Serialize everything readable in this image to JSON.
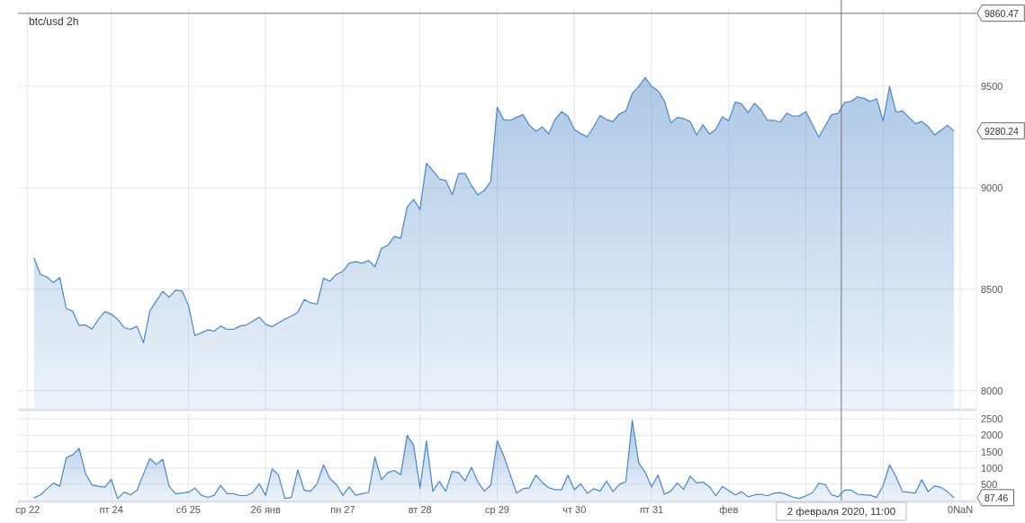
{
  "chart_data": [
    {
      "type": "area",
      "title": "btc/usd 2h",
      "tick_labels": "y",
      "grid": true,
      "x": [
        "2020-01-23T00:00",
        "2020-01-23T02:00",
        "2020-01-23T04:00",
        "2020-01-23T06:00",
        "2020-01-23T08:00",
        "2020-01-23T10:00",
        "2020-01-23T12:00",
        "2020-01-23T14:00",
        "2020-01-23T16:00",
        "2020-01-23T18:00",
        "2020-01-23T20:00",
        "2020-01-23T22:00",
        "2020-01-24T00:00",
        "2020-01-24T02:00",
        "2020-01-24T04:00",
        "2020-01-24T06:00",
        "2020-01-24T08:00",
        "2020-01-24T10:00",
        "2020-01-24T12:00",
        "2020-01-24T14:00",
        "2020-01-24T16:00",
        "2020-01-24T18:00",
        "2020-01-24T20:00",
        "2020-01-24T22:00",
        "2020-01-25T00:00",
        "2020-01-25T02:00",
        "2020-01-25T04:00",
        "2020-01-25T06:00",
        "2020-01-25T08:00",
        "2020-01-25T10:00",
        "2020-01-25T12:00",
        "2020-01-25T14:00",
        "2020-01-25T16:00",
        "2020-01-25T18:00",
        "2020-01-25T20:00",
        "2020-01-25T22:00",
        "2020-01-26T00:00",
        "2020-01-26T02:00",
        "2020-01-26T04:00",
        "2020-01-26T06:00",
        "2020-01-26T08:00",
        "2020-01-26T10:00",
        "2020-01-26T12:00",
        "2020-01-26T14:00",
        "2020-01-26T16:00",
        "2020-01-26T18:00",
        "2020-01-26T20:00",
        "2020-01-26T22:00",
        "2020-01-27T00:00",
        "2020-01-27T02:00",
        "2020-01-27T04:00",
        "2020-01-27T06:00",
        "2020-01-27T08:00",
        "2020-01-27T10:00",
        "2020-01-27T12:00",
        "2020-01-27T14:00",
        "2020-01-27T16:00",
        "2020-01-27T18:00",
        "2020-01-27T20:00",
        "2020-01-27T22:00",
        "2020-01-28T00:00",
        "2020-01-28T02:00",
        "2020-01-28T04:00",
        "2020-01-28T06:00",
        "2020-01-28T08:00",
        "2020-01-28T10:00",
        "2020-01-28T12:00",
        "2020-01-28T14:00",
        "2020-01-28T16:00",
        "2020-01-28T18:00",
        "2020-01-28T20:00",
        "2020-01-28T22:00",
        "2020-01-29T00:00",
        "2020-01-29T02:00",
        "2020-01-29T04:00",
        "2020-01-29T06:00",
        "2020-01-29T08:00",
        "2020-01-29T10:00",
        "2020-01-29T12:00",
        "2020-01-29T14:00",
        "2020-01-29T16:00",
        "2020-01-29T18:00",
        "2020-01-29T20:00",
        "2020-01-29T22:00",
        "2020-01-30T00:00",
        "2020-01-30T02:00",
        "2020-01-30T04:00",
        "2020-01-30T06:00",
        "2020-01-30T08:00",
        "2020-01-30T10:00",
        "2020-01-30T12:00",
        "2020-01-30T14:00",
        "2020-01-30T16:00",
        "2020-01-30T18:00",
        "2020-01-30T20:00",
        "2020-01-30T22:00",
        "2020-01-31T00:00",
        "2020-01-31T02:00",
        "2020-01-31T04:00",
        "2020-01-31T06:00",
        "2020-01-31T08:00",
        "2020-01-31T10:00",
        "2020-01-31T12:00",
        "2020-01-31T14:00",
        "2020-01-31T16:00",
        "2020-01-31T18:00",
        "2020-01-31T20:00",
        "2020-01-31T22:00",
        "2020-02-01T00:00",
        "2020-02-01T02:00",
        "2020-02-01T04:00",
        "2020-02-01T06:00",
        "2020-02-01T08:00",
        "2020-02-01T10:00",
        "2020-02-01T12:00",
        "2020-02-01T14:00",
        "2020-02-01T16:00",
        "2020-02-01T18:00",
        "2020-02-01T20:00",
        "2020-02-01T22:00",
        "2020-02-02T00:00",
        "2020-02-02T02:00",
        "2020-02-02T04:00",
        "2020-02-02T06:00",
        "2020-02-02T08:00",
        "2020-02-02T10:00",
        "2020-02-02T12:00",
        "2020-02-02T14:00",
        "2020-02-02T16:00",
        "2020-02-02T18:00",
        "2020-02-02T20:00",
        "2020-02-02T22:00",
        "2020-02-03T00:00",
        "2020-02-03T02:00",
        "2020-02-03T04:00",
        "2020-02-03T06:00",
        "2020-02-03T08:00",
        "2020-02-03T10:00",
        "2020-02-03T12:00",
        "2020-02-03T14:00",
        "2020-02-03T16:00",
        "2020-02-03T18:00",
        "2020-02-03T20:00",
        "2020-02-03T22:00"
      ],
      "series": [
        {
          "color": "#4a86c8",
          "values": [
            8653,
            8572,
            8560,
            8532,
            8557,
            8404,
            8392,
            8321,
            8324,
            8303,
            8352,
            8389,
            8377,
            8351,
            8311,
            8302,
            8317,
            8236,
            8392,
            8442,
            8489,
            8461,
            8495,
            8491,
            8421,
            8271,
            8285,
            8300,
            8293,
            8318,
            8302,
            8302,
            8318,
            8324,
            8342,
            8362,
            8327,
            8315,
            8334,
            8352,
            8367,
            8386,
            8449,
            8433,
            8426,
            8554,
            8539,
            8573,
            8588,
            8628,
            8636,
            8628,
            8641,
            8611,
            8701,
            8716,
            8760,
            8751,
            8905,
            8943,
            8893,
            9121,
            9084,
            9043,
            9037,
            8965,
            9070,
            9070,
            9011,
            8965,
            8987,
            9031,
            9397,
            9336,
            9332,
            9347,
            9360,
            9308,
            9279,
            9300,
            9266,
            9336,
            9375,
            9353,
            9288,
            9267,
            9251,
            9301,
            9356,
            9336,
            9326,
            9364,
            9378,
            9465,
            9500,
            9543,
            9500,
            9478,
            9428,
            9319,
            9347,
            9341,
            9326,
            9260,
            9310,
            9264,
            9289,
            9350,
            9330,
            9422,
            9413,
            9370,
            9416,
            9385,
            9333,
            9332,
            9323,
            9367,
            9353,
            9355,
            9375,
            9311,
            9249,
            9305,
            9360,
            9367,
            9420,
            9426,
            9448,
            9441,
            9426,
            9438,
            9329,
            9500,
            9373,
            9379,
            9348,
            9316,
            9327,
            9301,
            9260,
            9283,
            9308,
            9280.24
          ]
        }
      ],
      "xlim": [
        "2020-01-22T19:00",
        "2020-02-04T05:00"
      ],
      "xticks": [
        {
          "value": "2020-01-22T22:00",
          "label": null
        },
        {
          "value": "2020-01-24",
          "label": null
        },
        {
          "value": "2020-01-25",
          "label": null
        },
        {
          "value": "2020-01-26",
          "label": null
        },
        {
          "value": "2020-01-27",
          "label": null
        },
        {
          "value": "2020-01-28",
          "label": null
        },
        {
          "value": "2020-01-29",
          "label": null
        },
        {
          "value": "2020-01-30",
          "label": null
        },
        {
          "value": "2020-01-31",
          "label": null
        },
        {
          "value": "2020-02-01",
          "label": null
        },
        {
          "value": "2020-02-02",
          "label": null
        },
        {
          "value": "2020-02-03",
          "label": null
        },
        {
          "value": "2020-02-04",
          "label": null
        }
      ],
      "ylim": [
        7910,
        9890
      ],
      "yticks": [
        8000,
        8500,
        9000,
        9500
      ],
      "ref_lines": [
        {
          "axis": "y",
          "value": 9860.47,
          "label": "9860.47",
          "color": "#a0a0a8"
        },
        {
          "axis": "x",
          "value": "2020-02-02T11:00",
          "color": "#70737c"
        }
      ],
      "annotations": [
        "9280.24"
      ]
    },
    {
      "type": "area",
      "grid": true,
      "x": [
        "2020-01-23T00:00",
        "2020-01-23T02:00",
        "2020-01-23T04:00",
        "2020-01-23T06:00",
        "2020-01-23T08:00",
        "2020-01-23T10:00",
        "2020-01-23T12:00",
        "2020-01-23T14:00",
        "2020-01-23T16:00",
        "2020-01-23T18:00",
        "2020-01-23T20:00",
        "2020-01-23T22:00",
        "2020-01-24T00:00",
        "2020-01-24T02:00",
        "2020-01-24T04:00",
        "2020-01-24T06:00",
        "2020-01-24T08:00",
        "2020-01-24T10:00",
        "2020-01-24T12:00",
        "2020-01-24T14:00",
        "2020-01-24T16:00",
        "2020-01-24T18:00",
        "2020-01-24T20:00",
        "2020-01-24T22:00",
        "2020-01-25T00:00",
        "2020-01-25T02:00",
        "2020-01-25T04:00",
        "2020-01-25T06:00",
        "2020-01-25T08:00",
        "2020-01-25T10:00",
        "2020-01-25T12:00",
        "2020-01-25T14:00",
        "2020-01-25T16:00",
        "2020-01-25T18:00",
        "2020-01-25T20:00",
        "2020-01-25T22:00",
        "2020-01-26T00:00",
        "2020-01-26T02:00",
        "2020-01-26T04:00",
        "2020-01-26T06:00",
        "2020-01-26T08:00",
        "2020-01-26T10:00",
        "2020-01-26T12:00",
        "2020-01-26T14:00",
        "2020-01-26T16:00",
        "2020-01-26T18:00",
        "2020-01-26T20:00",
        "2020-01-26T22:00",
        "2020-01-27T00:00",
        "2020-01-27T02:00",
        "2020-01-27T04:00",
        "2020-01-27T06:00",
        "2020-01-27T08:00",
        "2020-01-27T10:00",
        "2020-01-27T12:00",
        "2020-01-27T14:00",
        "2020-01-27T16:00",
        "2020-01-27T18:00",
        "2020-01-27T20:00",
        "2020-01-27T22:00",
        "2020-01-28T00:00",
        "2020-01-28T02:00",
        "2020-01-28T04:00",
        "2020-01-28T06:00",
        "2020-01-28T08:00",
        "2020-01-28T10:00",
        "2020-01-28T12:00",
        "2020-01-28T14:00",
        "2020-01-28T16:00",
        "2020-01-28T18:00",
        "2020-01-28T20:00",
        "2020-01-28T22:00",
        "2020-01-29T00:00",
        "2020-01-29T02:00",
        "2020-01-29T04:00",
        "2020-01-29T06:00",
        "2020-01-29T08:00",
        "2020-01-29T10:00",
        "2020-01-29T12:00",
        "2020-01-29T14:00",
        "2020-01-29T16:00",
        "2020-01-29T18:00",
        "2020-01-29T20:00",
        "2020-01-29T22:00",
        "2020-01-30T00:00",
        "2020-01-30T02:00",
        "2020-01-30T04:00",
        "2020-01-30T06:00",
        "2020-01-30T08:00",
        "2020-01-30T10:00",
        "2020-01-30T12:00",
        "2020-01-30T14:00",
        "2020-01-30T16:00",
        "2020-01-30T18:00",
        "2020-01-30T20:00",
        "2020-01-30T22:00",
        "2020-01-31T00:00",
        "2020-01-31T02:00",
        "2020-01-31T04:00",
        "2020-01-31T06:00",
        "2020-01-31T08:00",
        "2020-01-31T10:00",
        "2020-01-31T12:00",
        "2020-01-31T14:00",
        "2020-01-31T16:00",
        "2020-01-31T18:00",
        "2020-01-31T20:00",
        "2020-01-31T22:00",
        "2020-02-01T00:00",
        "2020-02-01T02:00",
        "2020-02-01T04:00",
        "2020-02-01T06:00",
        "2020-02-01T08:00",
        "2020-02-01T10:00",
        "2020-02-01T12:00",
        "2020-02-01T14:00",
        "2020-02-01T16:00",
        "2020-02-01T18:00",
        "2020-02-01T20:00",
        "2020-02-01T22:00",
        "2020-02-02T00:00",
        "2020-02-02T02:00",
        "2020-02-02T04:00",
        "2020-02-02T06:00",
        "2020-02-02T08:00",
        "2020-02-02T10:00",
        "2020-02-02T12:00",
        "2020-02-02T14:00",
        "2020-02-02T16:00",
        "2020-02-02T18:00",
        "2020-02-02T20:00",
        "2020-02-02T22:00",
        "2020-02-03T00:00",
        "2020-02-03T02:00",
        "2020-02-03T04:00",
        "2020-02-03T06:00",
        "2020-02-03T08:00",
        "2020-02-03T10:00",
        "2020-02-03T12:00",
        "2020-02-03T14:00",
        "2020-02-03T16:00",
        "2020-02-03T18:00",
        "2020-02-03T20:00",
        "2020-02-03T22:00"
      ],
      "series": [
        {
          "color": "#4a86c8",
          "values": [
            86,
            171,
            362,
            533,
            438,
            1314,
            1400,
            1600,
            828,
            476,
            438,
            409,
            647,
            57,
            257,
            171,
            314,
            809,
            1285,
            1104,
            1266,
            438,
            209,
            228,
            257,
            381,
            162,
            95,
            162,
            466,
            209,
            209,
            152,
            152,
            248,
            514,
            162,
            971,
            781,
            67,
            95,
            942,
            314,
            286,
            514,
            1095,
            666,
            495,
            162,
            419,
            162,
            209,
            248,
            1333,
            638,
            857,
            923,
            790,
            2000,
            1695,
            381,
            1828,
            286,
            590,
            286,
            895,
            857,
            600,
            1019,
            571,
            286,
            476,
            1828,
            1381,
            809,
            228,
            361,
            391,
            777,
            559,
            391,
            332,
            332,
            777,
            332,
            510,
            223,
            361,
            292,
            599,
            272,
            500,
            579,
            2460,
            1153,
            866,
            421,
            777,
            193,
            292,
            540,
            342,
            747,
            540,
            569,
            421,
            144,
            431,
            302,
            173,
            272,
            114,
            173,
            193,
            144,
            223,
            243,
            183,
            104,
            64,
            144,
            233,
            530,
            490,
            173,
            114,
            322,
            322,
            193,
            173,
            163,
            94,
            460,
            1094,
            738,
            272,
            252,
            223,
            639,
            272,
            450,
            401,
            272,
            87.46
          ]
        }
      ],
      "xlim": [
        "2020-01-22T19:00",
        "2020-02-04T05:00"
      ],
      "xticks": [
        {
          "value": "2020-01-22T22:00",
          "label": "ср 22"
        },
        {
          "value": "2020-01-24",
          "label": "пт 24"
        },
        {
          "value": "2020-01-25",
          "label": "сб 25"
        },
        {
          "value": "2020-01-26",
          "label": "26 янв"
        },
        {
          "value": "2020-01-27",
          "label": "пн 27"
        },
        {
          "value": "2020-01-28",
          "label": "вт 28"
        },
        {
          "value": "2020-01-29",
          "label": "ср 29"
        },
        {
          "value": "2020-01-30",
          "label": "чт 30"
        },
        {
          "value": "2020-01-31",
          "label": "пт 31"
        },
        {
          "value": "2020-02-01",
          "label": "фев"
        },
        {
          "value": "2020-02-02",
          "label": null
        },
        {
          "value": "2020-02-03",
          "label": null
        },
        {
          "value": "2020-02-04",
          "label": "0NaN"
        }
      ],
      "ylim": [
        0,
        2670
      ],
      "yticks": [
        500,
        1000,
        1500,
        2000,
        2500
      ],
      "ref_lines": [
        {
          "axis": "x",
          "value": "2020-02-02T11:00",
          "label": "2 февраля 2020, 11:00",
          "color": "#70737c"
        }
      ],
      "annotations": [
        "87.46"
      ]
    }
  ]
}
